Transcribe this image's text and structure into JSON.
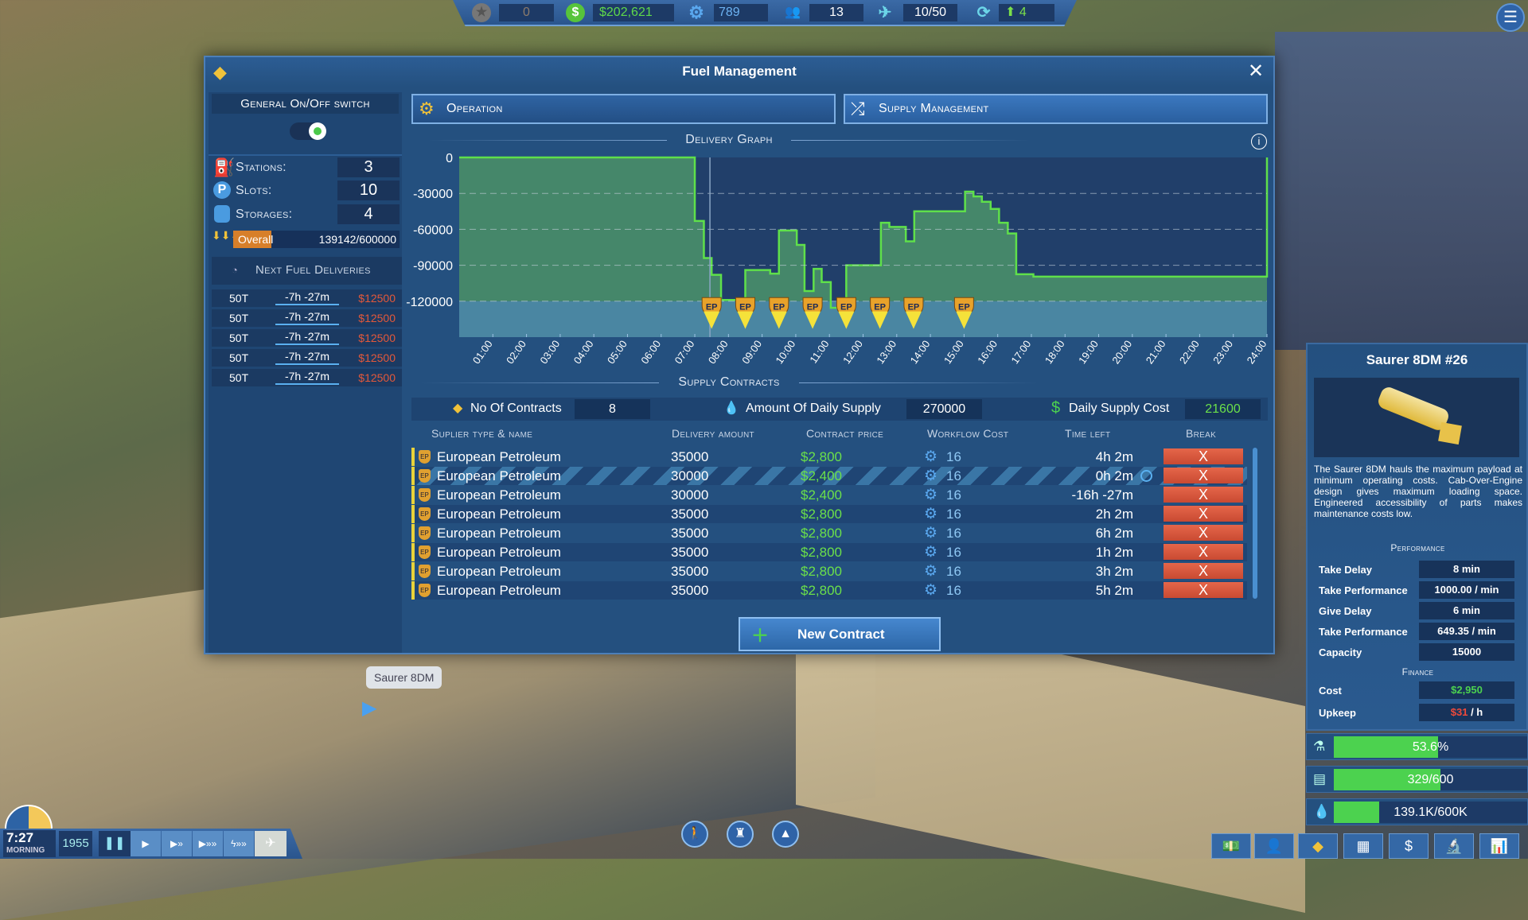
{
  "topbar": {
    "stars": "0",
    "money": "$202,621",
    "research": "789",
    "staff": "13",
    "flights": "10/50",
    "transfers": "4"
  },
  "dialog": {
    "title": "Fuel Management"
  },
  "left": {
    "switch_label": "General On/Off switch",
    "switch_on": true,
    "stats": [
      {
        "label": "Stations:",
        "value": "3"
      },
      {
        "label": "Slots:",
        "value": "10"
      },
      {
        "label": "Storages:",
        "value": "4"
      }
    ],
    "overall_label": "Overall",
    "overall_value": "139142/600000",
    "overall_fraction": 0.232,
    "deliveries_title": "Next Fuel Deliveries",
    "deliveries": [
      {
        "amount": "50T",
        "time": "-7h -27m",
        "cost": "$12500"
      },
      {
        "amount": "50T",
        "time": "-7h -27m",
        "cost": "$12500"
      },
      {
        "amount": "50T",
        "time": "-7h -27m",
        "cost": "$12500"
      },
      {
        "amount": "50T",
        "time": "-7h -27m",
        "cost": "$12500"
      },
      {
        "amount": "50T",
        "time": "-7h -27m",
        "cost": "$12500"
      }
    ]
  },
  "tabs": [
    {
      "label": "Operation",
      "active": false
    },
    {
      "label": "Supply Management",
      "active": true
    }
  ],
  "graph_title": "Delivery Graph",
  "chart_data": {
    "type": "area",
    "title": "Delivery Graph",
    "step": true,
    "yticks": [
      "0",
      "-30000",
      "-60000",
      "-90000",
      "-120000"
    ],
    "ylim": [
      -150000,
      0
    ],
    "xticks": [
      "01:00",
      "02:00",
      "03:00",
      "04:00",
      "05:00",
      "06:00",
      "07:00",
      "08:00",
      "09:00",
      "10:00",
      "11:00",
      "12:00",
      "13:00",
      "14:00",
      "15:00",
      "16:00",
      "17:00",
      "18:00",
      "19:00",
      "20:00",
      "21:00",
      "22:00",
      "23:00",
      "24:00"
    ],
    "xlim_hours": [
      0,
      24
    ],
    "current_time_hours": 7.45,
    "threshold": -120000,
    "steps": [
      [
        0,
        0
      ],
      [
        7.0,
        -53000
      ],
      [
        7.27,
        -84000
      ],
      [
        7.5,
        -98000
      ],
      [
        7.78,
        -119000
      ],
      [
        8.3,
        -129000
      ],
      [
        8.5,
        -94000
      ],
      [
        9.24,
        -97000
      ],
      [
        9.5,
        -61000
      ],
      [
        10.03,
        -73000
      ],
      [
        10.26,
        -111500
      ],
      [
        10.53,
        -93000
      ],
      [
        10.77,
        -104000
      ],
      [
        11.04,
        -125500
      ],
      [
        11.5,
        -90000
      ],
      [
        12.53,
        -54500
      ],
      [
        12.78,
        -58000
      ],
      [
        13.27,
        -70000
      ],
      [
        13.52,
        -45000
      ],
      [
        15.03,
        -28500
      ],
      [
        15.28,
        -32500
      ],
      [
        15.53,
        -37000
      ],
      [
        15.79,
        -43000
      ],
      [
        16.04,
        -54500
      ],
      [
        16.3,
        -63500
      ],
      [
        16.55,
        -97500
      ],
      [
        17.06,
        -99500
      ],
      [
        24,
        0
      ]
    ],
    "markers": {
      "label": "EP",
      "hours": [
        7.5,
        8.5,
        9.5,
        10.5,
        11.5,
        12.5,
        13.5,
        15.0
      ]
    },
    "colors": {
      "fill": "#45876a",
      "line": "#5fe04a",
      "below": "#4a86a8",
      "bg": "#213f6a"
    }
  },
  "contracts": {
    "title": "Supply Contracts",
    "count_label": "No Of Contracts",
    "count": "8",
    "supply_label": "Amount Of Daily Supply",
    "supply": "270000",
    "cost_label": "Daily Supply Cost",
    "cost": "21600",
    "headers": [
      "Suplier type & name",
      "Delivery amount",
      "Contract price",
      "Workflow Cost",
      "Time left",
      "Break"
    ],
    "rows": [
      {
        "name": "European Petroleum",
        "amount": "35000",
        "price": "$2,800",
        "workflow": "16",
        "time": "4h 2m"
      },
      {
        "name": "European Petroleum",
        "amount": "30000",
        "price": "$2,400",
        "workflow": "16",
        "time": "0h 2m",
        "active": true
      },
      {
        "name": "European Petroleum",
        "amount": "30000",
        "price": "$2,400",
        "workflow": "16",
        "time": "-16h -27m"
      },
      {
        "name": "European Petroleum",
        "amount": "35000",
        "price": "$2,800",
        "workflow": "16",
        "time": "2h 2m"
      },
      {
        "name": "European Petroleum",
        "amount": "35000",
        "price": "$2,800",
        "workflow": "16",
        "time": "6h 2m"
      },
      {
        "name": "European Petroleum",
        "amount": "35000",
        "price": "$2,800",
        "workflow": "16",
        "time": "1h 2m"
      },
      {
        "name": "European Petroleum",
        "amount": "35000",
        "price": "$2,800",
        "workflow": "16",
        "time": "3h 2m"
      },
      {
        "name": "European Petroleum",
        "amount": "35000",
        "price": "$2,800",
        "workflow": "16",
        "time": "5h 2m"
      }
    ],
    "break_label": "X",
    "new_label": "New Contract"
  },
  "tooltip": "Saurer 8DM",
  "vehicle": {
    "title": "Saurer 8DM #26",
    "description": "The Saurer 8DM hauls the maximum payload at minimum operating costs. Cab-Over-Engine design gives maximum loading space. Engineered accessibility of parts makes maintenance costs low.",
    "performance_title": "Performance",
    "performance": [
      {
        "label": "Take Delay",
        "value": "8 min"
      },
      {
        "label": "Take Performance",
        "value": "1000.00 / min"
      },
      {
        "label": "Give Delay",
        "value": "6 min"
      },
      {
        "label": "Take Performance",
        "value": "649.35 / min"
      },
      {
        "label": "Capacity",
        "value": "15000"
      }
    ],
    "finance_title": "Finance",
    "cost_label": "Cost",
    "cost": "$2,950",
    "upkeep_label": "Upkeep",
    "upkeep": "$31",
    "upkeep_unit": " / h"
  },
  "bars": [
    {
      "text": "53.6%",
      "fraction": 0.536,
      "icon": "flask-icon"
    },
    {
      "text": "329/600",
      "fraction": 0.548,
      "icon": "cargo-icon"
    },
    {
      "text": "139.1K/600K",
      "fraction": 0.232,
      "icon": "fuel-drops-icon"
    }
  ],
  "clock": {
    "time": "7:27",
    "period": "MORNING",
    "year": "1955"
  }
}
